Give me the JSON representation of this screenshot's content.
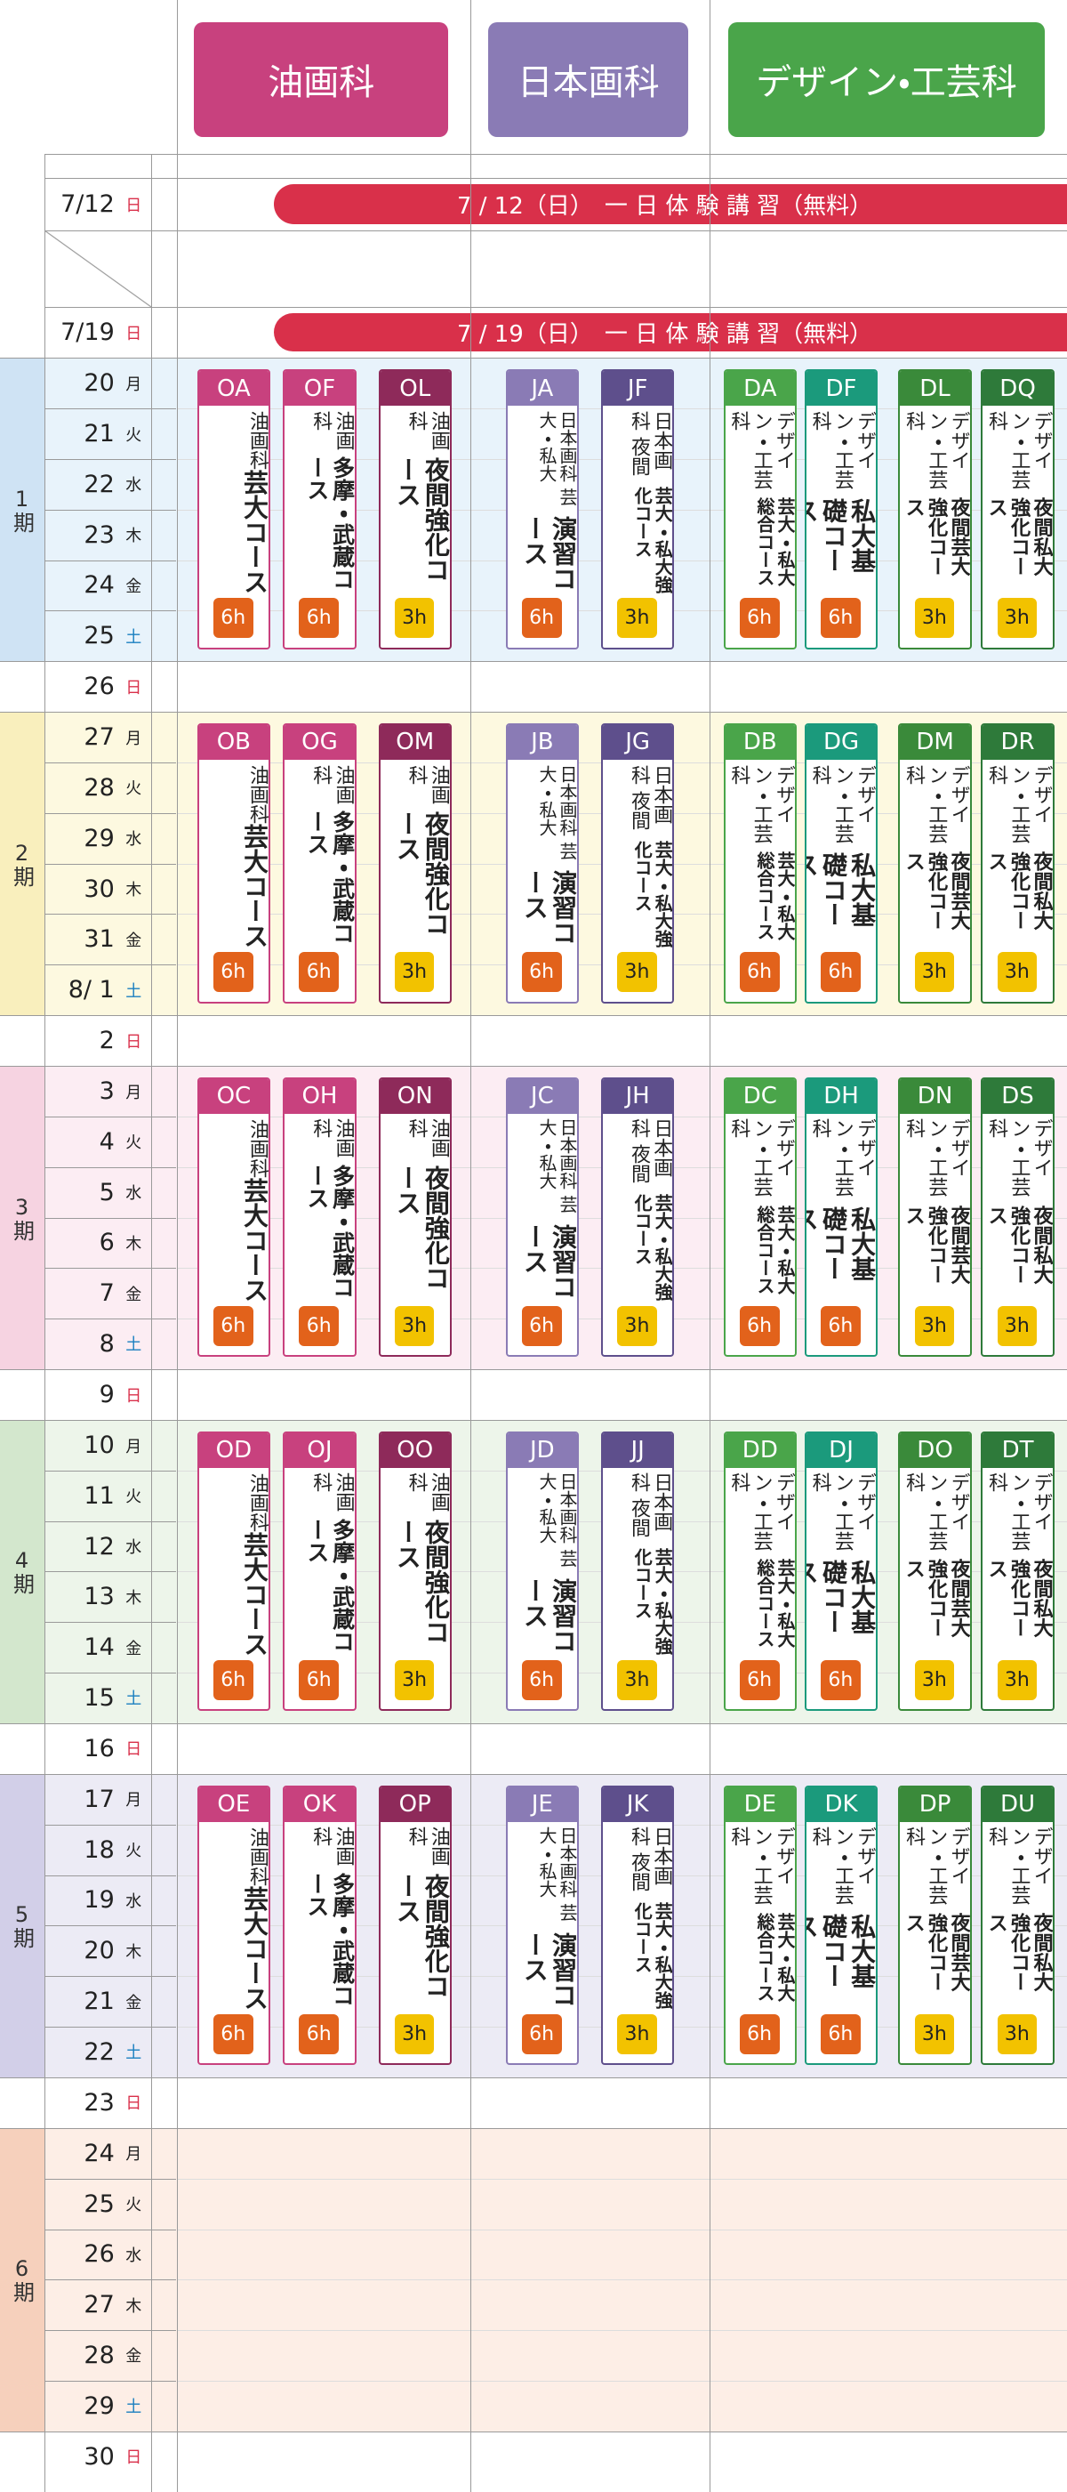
{
  "header": {
    "departments": [
      "油画科",
      "日本画科",
      "デザイン・工芸科"
    ]
  },
  "schedule": {
    "events": [
      {
        "date": "7/12",
        "weekday": "日",
        "banner": "7 / 12（日）　一 日 体 験 講 習（無料）"
      },
      {
        "date": "7/19",
        "weekday": "日",
        "banner": "7 / 19（日）　一 日 体 験 講 習（無料）"
      }
    ],
    "periods": [
      {
        "label": "1期",
        "days": [
          {
            "date": "20",
            "weekday": "月"
          },
          {
            "date": "21",
            "weekday": "火"
          },
          {
            "date": "22",
            "weekday": "水"
          },
          {
            "date": "23",
            "weekday": "木"
          },
          {
            "date": "24",
            "weekday": "金"
          },
          {
            "date": "25",
            "weekday": "土"
          }
        ],
        "rest_day": {
          "date": "26",
          "weekday": "日"
        },
        "courses": [
          {
            "code": "OA",
            "lines": [
              "油画科",
              "芸大コース"
            ],
            "hours": "6h"
          },
          {
            "code": "OF",
            "lines": [
              "油画科",
              "多摩・武蔵コース"
            ],
            "hours": "6h"
          },
          {
            "code": "OL",
            "lines": [
              "油画科",
              "夜間強化コース"
            ],
            "hours": "3h"
          },
          {
            "code": "JA",
            "lines": [
              "日本画科 芸大・私大",
              "演習コース"
            ],
            "hours": "6h"
          },
          {
            "code": "JF",
            "lines": [
              "日本画科 夜間",
              "芸大・私大強化コース"
            ],
            "hours": "3h"
          },
          {
            "code": "DA",
            "lines": [
              "デザイン・工芸科",
              "芸大・私大総合コース"
            ],
            "hours": "6h"
          },
          {
            "code": "DF",
            "lines": [
              "デザイン・工芸科",
              "私大基礎コース"
            ],
            "hours": "6h"
          },
          {
            "code": "DL",
            "lines": [
              "デザイン・工芸科",
              "夜間芸大強化コース"
            ],
            "hours": "3h"
          },
          {
            "code": "DQ",
            "lines": [
              "デザイン・工芸科",
              "夜間私大強化コース"
            ],
            "hours": "3h"
          }
        ]
      },
      {
        "label": "2期",
        "days": [
          {
            "date": "27",
            "weekday": "月"
          },
          {
            "date": "28",
            "weekday": "火"
          },
          {
            "date": "29",
            "weekday": "水"
          },
          {
            "date": "30",
            "weekday": "木"
          },
          {
            "date": "31",
            "weekday": "金"
          },
          {
            "date": "8/ 1",
            "weekday": "土"
          }
        ],
        "rest_day": {
          "date": "2",
          "weekday": "日"
        },
        "courses": [
          {
            "code": "OB",
            "lines": [
              "油画科",
              "芸大コース"
            ],
            "hours": "6h"
          },
          {
            "code": "OG",
            "lines": [
              "油画科",
              "多摩・武蔵コース"
            ],
            "hours": "6h"
          },
          {
            "code": "OM",
            "lines": [
              "油画科",
              "夜間強化コース"
            ],
            "hours": "3h"
          },
          {
            "code": "JB",
            "lines": [
              "日本画科 芸大・私大",
              "演習コース"
            ],
            "hours": "6h"
          },
          {
            "code": "JG",
            "lines": [
              "日本画科 夜間",
              "芸大・私大強化コース"
            ],
            "hours": "3h"
          },
          {
            "code": "DB",
            "lines": [
              "デザイン・工芸科",
              "芸大・私大総合コース"
            ],
            "hours": "6h"
          },
          {
            "code": "DG",
            "lines": [
              "デザイン・工芸科",
              "私大基礎コース"
            ],
            "hours": "6h"
          },
          {
            "code": "DM",
            "lines": [
              "デザイン・工芸科",
              "夜間芸大強化コース"
            ],
            "hours": "3h"
          },
          {
            "code": "DR",
            "lines": [
              "デザイン・工芸科",
              "夜間私大強化コース"
            ],
            "hours": "3h"
          }
        ]
      },
      {
        "label": "3期",
        "days": [
          {
            "date": "3",
            "weekday": "月"
          },
          {
            "date": "4",
            "weekday": "火"
          },
          {
            "date": "5",
            "weekday": "水"
          },
          {
            "date": "6",
            "weekday": "木"
          },
          {
            "date": "7",
            "weekday": "金"
          },
          {
            "date": "8",
            "weekday": "土"
          }
        ],
        "rest_day": {
          "date": "9",
          "weekday": "日"
        },
        "courses": [
          {
            "code": "OC",
            "lines": [
              "油画科",
              "芸大コース"
            ],
            "hours": "6h"
          },
          {
            "code": "OH",
            "lines": [
              "油画科",
              "多摩・武蔵コース"
            ],
            "hours": "6h"
          },
          {
            "code": "ON",
            "lines": [
              "油画科",
              "夜間強化コース"
            ],
            "hours": "3h"
          },
          {
            "code": "JC",
            "lines": [
              "日本画科 芸大・私大",
              "演習コース"
            ],
            "hours": "6h"
          },
          {
            "code": "JH",
            "lines": [
              "日本画科 夜間",
              "芸大・私大強化コース"
            ],
            "hours": "3h"
          },
          {
            "code": "DC",
            "lines": [
              "デザイン・工芸科",
              "芸大・私大総合コース"
            ],
            "hours": "6h"
          },
          {
            "code": "DH",
            "lines": [
              "デザイン・工芸科",
              "私大基礎コース"
            ],
            "hours": "6h"
          },
          {
            "code": "DN",
            "lines": [
              "デザイン・工芸科",
              "夜間芸大強化コース"
            ],
            "hours": "3h"
          },
          {
            "code": "DS",
            "lines": [
              "デザイン・工芸科",
              "夜間私大強化コース"
            ],
            "hours": "3h"
          }
        ]
      },
      {
        "label": "4期",
        "days": [
          {
            "date": "10",
            "weekday": "月"
          },
          {
            "date": "11",
            "weekday": "火"
          },
          {
            "date": "12",
            "weekday": "水"
          },
          {
            "date": "13",
            "weekday": "木"
          },
          {
            "date": "14",
            "weekday": "金"
          },
          {
            "date": "15",
            "weekday": "土"
          }
        ],
        "rest_day": {
          "date": "16",
          "weekday": "日"
        },
        "courses": [
          {
            "code": "OD",
            "lines": [
              "油画科",
              "芸大コース"
            ],
            "hours": "6h"
          },
          {
            "code": "OJ",
            "lines": [
              "油画科",
              "多摩・武蔵コース"
            ],
            "hours": "6h"
          },
          {
            "code": "OO",
            "lines": [
              "油画科",
              "夜間強化コース"
            ],
            "hours": "3h"
          },
          {
            "code": "JD",
            "lines": [
              "日本画科 芸大・私大",
              "演習コース"
            ],
            "hours": "6h"
          },
          {
            "code": "JJ",
            "lines": [
              "日本画科 夜間",
              "芸大・私大強化コース"
            ],
            "hours": "3h"
          },
          {
            "code": "DD",
            "lines": [
              "デザイン・工芸科",
              "芸大・私大総合コース"
            ],
            "hours": "6h"
          },
          {
            "code": "DJ",
            "lines": [
              "デザイン・工芸科",
              "私大基礎コース"
            ],
            "hours": "6h"
          },
          {
            "code": "DO",
            "lines": [
              "デザイン・工芸科",
              "夜間芸大強化コース"
            ],
            "hours": "3h"
          },
          {
            "code": "DT",
            "lines": [
              "デザイン・工芸科",
              "夜間私大強化コース"
            ],
            "hours": "3h"
          }
        ]
      },
      {
        "label": "5期",
        "days": [
          {
            "date": "17",
            "weekday": "月"
          },
          {
            "date": "18",
            "weekday": "火"
          },
          {
            "date": "19",
            "weekday": "水"
          },
          {
            "date": "20",
            "weekday": "木"
          },
          {
            "date": "21",
            "weekday": "金"
          },
          {
            "date": "22",
            "weekday": "土"
          }
        ],
        "rest_day": {
          "date": "23",
          "weekday": "日"
        },
        "courses": [
          {
            "code": "OE",
            "lines": [
              "油画科",
              "芸大コース"
            ],
            "hours": "6h"
          },
          {
            "code": "OK",
            "lines": [
              "油画科",
              "多摩・武蔵コース"
            ],
            "hours": "6h"
          },
          {
            "code": "OP",
            "lines": [
              "油画科",
              "夜間強化コース"
            ],
            "hours": "3h"
          },
          {
            "code": "JE",
            "lines": [
              "日本画科 芸大・私大",
              "演習コース"
            ],
            "hours": "6h"
          },
          {
            "code": "JK",
            "lines": [
              "日本画科 夜間",
              "芸大・私大強化コース"
            ],
            "hours": "3h"
          },
          {
            "code": "DE",
            "lines": [
              "デザイン・工芸科",
              "芸大・私大総合コース"
            ],
            "hours": "6h"
          },
          {
            "code": "DK",
            "lines": [
              "デザイン・工芸科",
              "私大基礎コース"
            ],
            "hours": "6h"
          },
          {
            "code": "DP",
            "lines": [
              "デザイン・工芸科",
              "夜間芸大強化コース"
            ],
            "hours": "3h"
          },
          {
            "code": "DU",
            "lines": [
              "デザイン・工芸科",
              "夜間私大強化コース"
            ],
            "hours": "3h"
          }
        ]
      },
      {
        "label": "6期",
        "days": [
          {
            "date": "24",
            "weekday": "月"
          },
          {
            "date": "25",
            "weekday": "火"
          },
          {
            "date": "26",
            "weekday": "水"
          },
          {
            "date": "27",
            "weekday": "木"
          },
          {
            "date": "28",
            "weekday": "金"
          },
          {
            "date": "29",
            "weekday": "土"
          }
        ],
        "rest_day": {
          "date": "30",
          "weekday": "日"
        },
        "courses": []
      }
    ]
  }
}
